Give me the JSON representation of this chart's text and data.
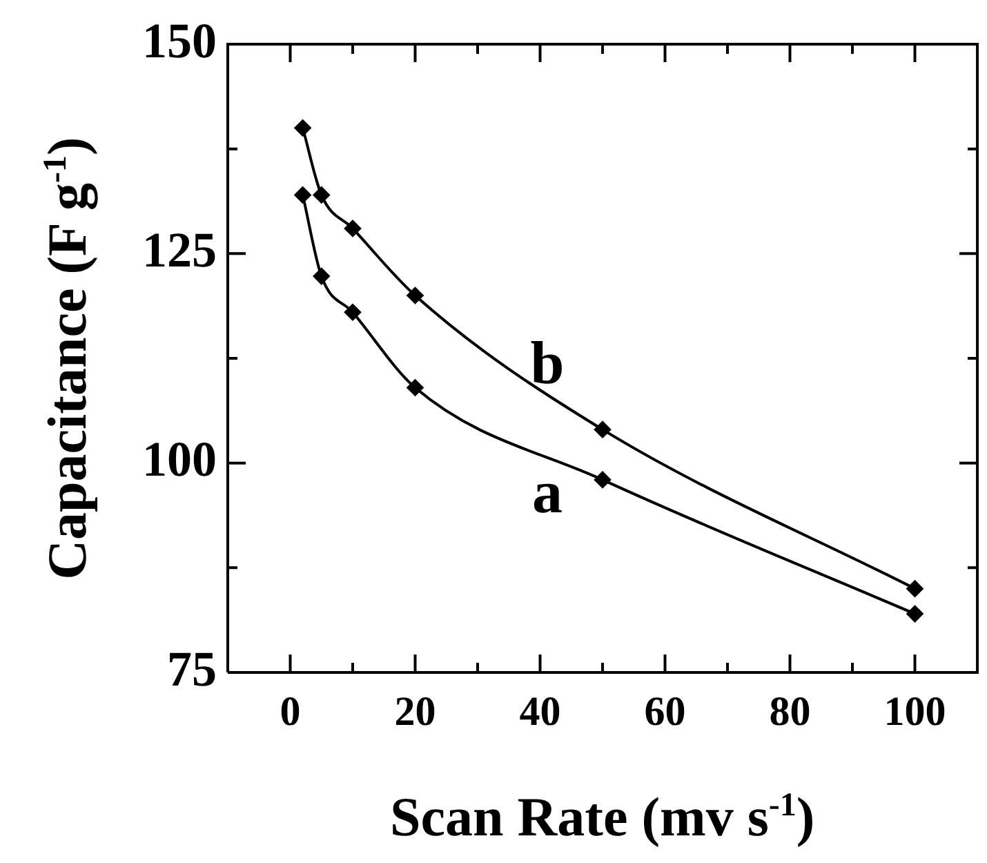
{
  "chart_data": {
    "type": "line",
    "xlabel": "Scan Rate (mv s$^{-1}$)",
    "ylabel": "Capacitance (F g$^{-1}$)",
    "x": [
      2,
      5,
      10,
      20,
      50,
      100
    ],
    "series": [
      {
        "name": "a",
        "color": "#000000",
        "values": [
          132,
          122.3,
          118,
          109,
          98,
          82
        ]
      },
      {
        "name": "b",
        "color": "#000000",
        "values": [
          140,
          132,
          128,
          120,
          104,
          85
        ]
      }
    ],
    "marker": "diamond",
    "xlim": [
      -10,
      110
    ],
    "ylim": [
      75,
      150
    ],
    "xticks": [
      0,
      {
        "value": 10,
        "label": null
      },
      20,
      {
        "value": 30,
        "label": null
      },
      40,
      {
        "value": 50,
        "label": null
      },
      60,
      {
        "value": 70,
        "label": null
      },
      80,
      {
        "value": 90,
        "label": null
      },
      100
    ],
    "yticks": [
      75,
      {
        "value": 87.5,
        "label": null
      },
      100,
      {
        "value": 112.5,
        "label": null
      },
      125,
      {
        "value": 137.5,
        "label": null
      },
      150
    ]
  }
}
